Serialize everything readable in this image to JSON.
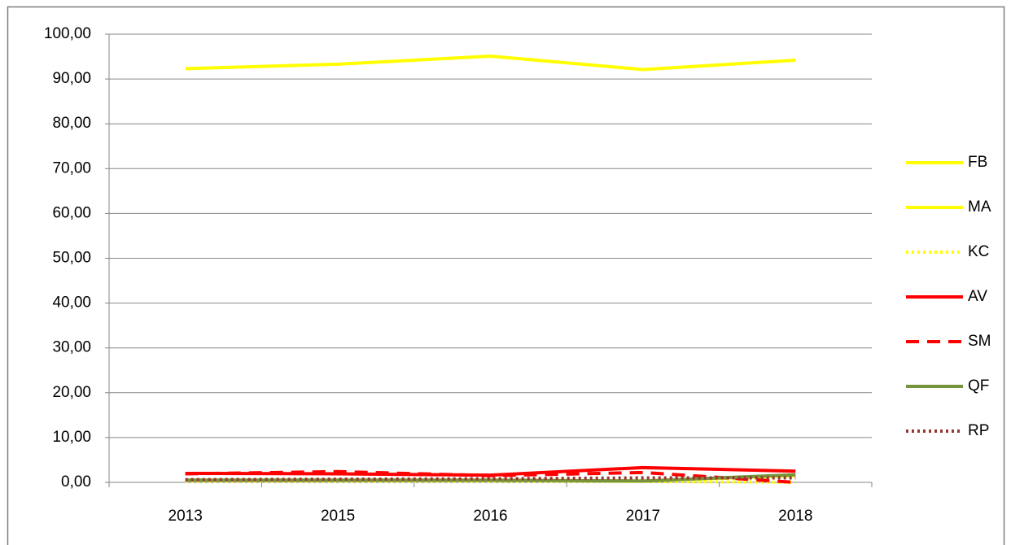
{
  "chart_data": {
    "type": "line",
    "categories": [
      "2013",
      "2015",
      "2016",
      "2017",
      "2018"
    ],
    "series": [
      {
        "name": "FB",
        "color": "#ffff00",
        "line_style": "solid",
        "values": [
          92.3,
          93.3,
          95.1,
          92.1,
          94.2
        ]
      },
      {
        "name": "MA",
        "color": "#ffff00",
        "line_style": "solid",
        "values": [
          0.5,
          0.5,
          0.5,
          0.3,
          1.5
        ]
      },
      {
        "name": "KC",
        "color": "#ffff00",
        "line_style": "dotted",
        "values": [
          0.3,
          0.3,
          0.3,
          0.2,
          0.0
        ]
      },
      {
        "name": "AV",
        "color": "#ff0000",
        "line_style": "solid",
        "values": [
          2.0,
          1.9,
          1.6,
          3.3,
          2.5
        ]
      },
      {
        "name": "SM",
        "color": "#ff0000",
        "line_style": "dashed",
        "values": [
          1.9,
          2.4,
          1.5,
          2.2,
          0.0
        ]
      },
      {
        "name": "QF",
        "color": "#77933c",
        "line_style": "solid",
        "values": [
          0.5,
          0.5,
          0.5,
          0.3,
          1.7
        ]
      },
      {
        "name": "RP",
        "color": "#953735",
        "line_style": "dotted",
        "values": [
          0.6,
          0.7,
          0.8,
          1.0,
          1.0
        ]
      }
    ],
    "ylim": [
      0,
      100
    ],
    "yticks": [
      {
        "value": 0,
        "label": "0,00"
      },
      {
        "value": 10,
        "label": "10,00"
      },
      {
        "value": 20,
        "label": "20,00"
      },
      {
        "value": 30,
        "label": "30,00"
      },
      {
        "value": 40,
        "label": "40,00"
      },
      {
        "value": 50,
        "label": "50,00"
      },
      {
        "value": 60,
        "label": "60,00"
      },
      {
        "value": 70,
        "label": "70,00"
      },
      {
        "value": 80,
        "label": "80,00"
      },
      {
        "value": 90,
        "label": "90,00"
      },
      {
        "value": 100,
        "label": "100,00"
      }
    ],
    "grid": true,
    "legend": "right"
  }
}
